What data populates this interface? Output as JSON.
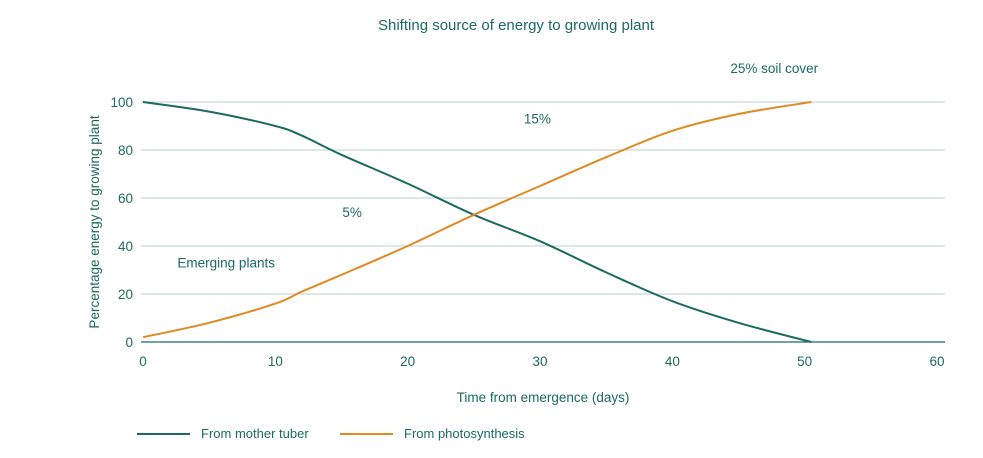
{
  "chart_data": {
    "type": "line",
    "title": "Shifting source of energy to growing plant",
    "xlabel": "Time from emergence (days)",
    "ylabel": "Percentage energy to growing plant",
    "xlim": [
      0,
      60
    ],
    "ylim": [
      0,
      100
    ],
    "xticks": [
      0,
      10,
      20,
      30,
      40,
      50,
      60
    ],
    "yticks": [
      0,
      20,
      40,
      60,
      80,
      100
    ],
    "grid": "horizontal",
    "legend_position": "bottom-left",
    "series": [
      {
        "name": "From mother tuber",
        "color": "#1c6a60",
        "x": [
          0,
          5,
          10,
          12,
          15,
          20,
          25,
          30,
          35,
          40,
          45,
          50.5
        ],
        "y": [
          100,
          96,
          90,
          86,
          78,
          66,
          53,
          42,
          29,
          17,
          8,
          0
        ]
      },
      {
        "name": "From photosynthesis",
        "color": "#e08a22",
        "x": [
          0,
          5,
          10,
          12,
          15,
          20,
          25,
          30,
          35,
          40,
          45,
          50.5
        ],
        "y": [
          2,
          8,
          16,
          21,
          28,
          40,
          53,
          65,
          77,
          88,
          95,
          100
        ]
      }
    ],
    "annotations": [
      {
        "text": "Emerging plants",
        "x": 2.6,
        "y": 31
      },
      {
        "text": "5%",
        "x": 15.8,
        "y": 52
      },
      {
        "text": "15%",
        "x": 29.8,
        "y": 91
      },
      {
        "text": "25% soil cover",
        "x": 47.7,
        "y": 112
      }
    ]
  }
}
